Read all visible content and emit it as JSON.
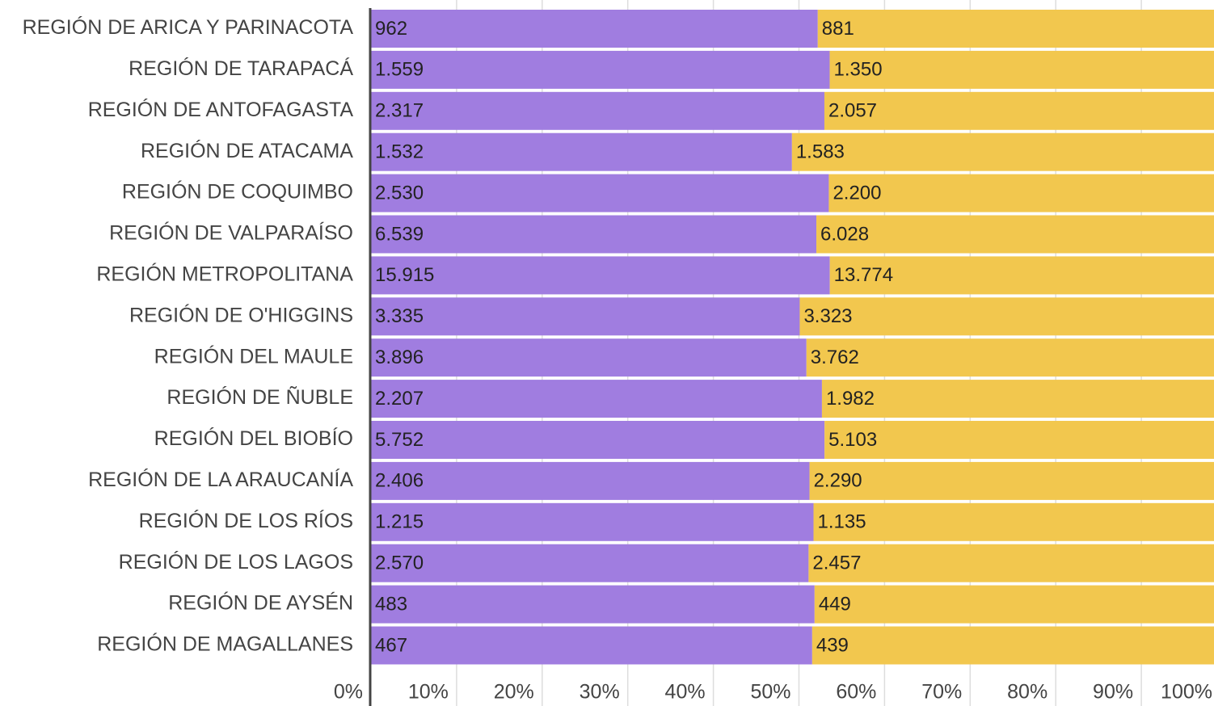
{
  "chart_data": {
    "type": "bar_stacked_percent",
    "orientation": "horizontal",
    "categories": [
      "REGIÓN DE ARICA Y PARINACOTA",
      "REGIÓN DE TARAPACÁ",
      "REGIÓN DE ANTOFAGASTA",
      "REGIÓN DE ATACAMA",
      "REGIÓN DE COQUIMBO",
      "REGIÓN DE VALPARAÍSO",
      "REGIÓN METROPOLITANA",
      "REGIÓN DE O'HIGGINS",
      "REGIÓN DEL MAULE",
      "REGIÓN DE ÑUBLE",
      "REGIÓN DEL BIOBÍO",
      "REGIÓN DE LA ARAUCANÍA",
      "REGIÓN DE LOS RÍOS",
      "REGIÓN DE LOS LAGOS",
      "REGIÓN DE AYSÉN",
      "REGIÓN DE MAGALLANES"
    ],
    "series": [
      {
        "color": "#a07de0",
        "values": [
          962,
          1559,
          2317,
          1532,
          2530,
          6539,
          15915,
          3335,
          3896,
          2207,
          5752,
          2406,
          1215,
          2570,
          483,
          467
        ],
        "value_labels": [
          "962",
          "1.559",
          "2.317",
          "1.532",
          "2.530",
          "6.539",
          "15.915",
          "3.335",
          "3.896",
          "2.207",
          "5.752",
          "2.406",
          "1.215",
          "2.570",
          "483",
          "467"
        ]
      },
      {
        "color": "#f2c74e",
        "values": [
          881,
          1350,
          2057,
          1583,
          2200,
          6028,
          13774,
          3323,
          3762,
          1982,
          5103,
          2290,
          1135,
          2457,
          449,
          439
        ],
        "value_labels": [
          "881",
          "1.350",
          "2.057",
          "1.583",
          "2.200",
          "6.028",
          "13.774",
          "3.323",
          "3.762",
          "1.982",
          "5.103",
          "2.290",
          "1.135",
          "2.457",
          "449",
          "439"
        ]
      }
    ],
    "xlim": [
      0,
      100
    ],
    "xticks": [
      {
        "value": 0,
        "label": "0%"
      },
      {
        "value": 10,
        "label": "10%"
      },
      {
        "value": 20,
        "label": "20%"
      },
      {
        "value": 30,
        "label": "30%"
      },
      {
        "value": 40,
        "label": "40%"
      },
      {
        "value": 50,
        "label": "50%"
      },
      {
        "value": 60,
        "label": "60%"
      },
      {
        "value": 70,
        "label": "70%"
      },
      {
        "value": 80,
        "label": "80%"
      },
      {
        "value": 90,
        "label": "90%"
      },
      {
        "value": 100,
        "label": "100%"
      }
    ],
    "grid": true
  }
}
